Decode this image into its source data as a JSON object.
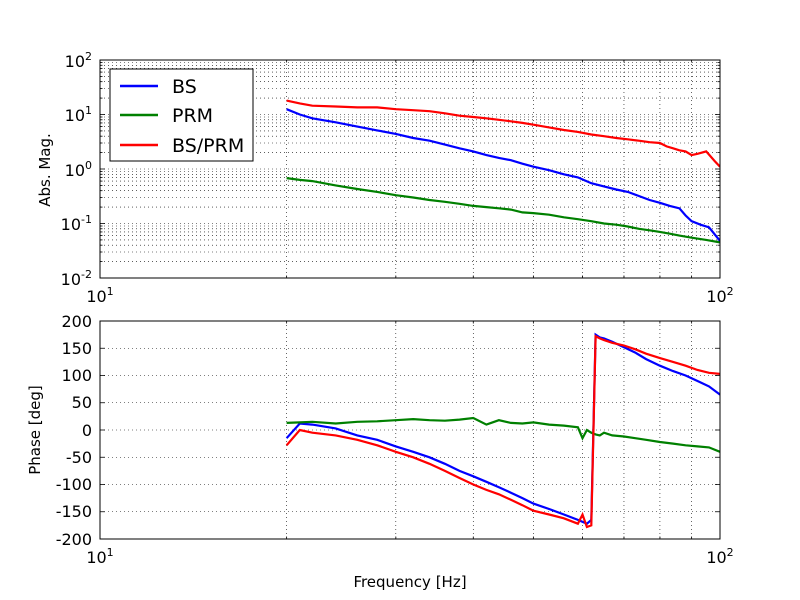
{
  "chart_data": [
    {
      "type": "line",
      "xscale": "log",
      "yscale": "log",
      "xlim": [
        10,
        100
      ],
      "ylim": [
        0.01,
        100
      ],
      "xlabel": "",
      "ylabel": "Abs. Mag.",
      "x_tick_labels": [
        {
          "value": 10,
          "base": "10",
          "exp": "1"
        },
        {
          "value": 100,
          "base": "10",
          "exp": "2"
        }
      ],
      "y_tick_labels": [
        {
          "value": 100,
          "base": "10",
          "exp": "2"
        },
        {
          "value": 10,
          "base": "10",
          "exp": "1"
        },
        {
          "value": 1,
          "base": "10",
          "exp": "0"
        },
        {
          "value": 0.1,
          "base": "10",
          "exp": "-1"
        },
        {
          "value": 0.01,
          "base": "10",
          "exp": "-2"
        }
      ],
      "grid": true,
      "legend": "top-left",
      "series": [
        {
          "name": "BS",
          "color": "#0000ff",
          "x": [
            20,
            21,
            22,
            24,
            26,
            28,
            30,
            32,
            34,
            36,
            38,
            40,
            42,
            44,
            46,
            48,
            50,
            53,
            56,
            59,
            62,
            65,
            68,
            71,
            74,
            77,
            80,
            83,
            86,
            88,
            90,
            93,
            96,
            100
          ],
          "y": [
            12.5,
            10,
            8.5,
            7.2,
            6,
            5.1,
            4.4,
            3.7,
            3.3,
            2.8,
            2.4,
            2.1,
            1.8,
            1.6,
            1.45,
            1.25,
            1.1,
            0.95,
            0.8,
            0.7,
            0.55,
            0.48,
            0.42,
            0.38,
            0.32,
            0.27,
            0.24,
            0.21,
            0.19,
            0.14,
            0.11,
            0.095,
            0.085,
            0.048
          ]
        },
        {
          "name": "PRM",
          "color": "#008000",
          "x": [
            20,
            21,
            22,
            24,
            26,
            28,
            30,
            32,
            34,
            36,
            38,
            40,
            42,
            44,
            46,
            48,
            50,
            53,
            56,
            59,
            62,
            65,
            68,
            71,
            74,
            77,
            80,
            83,
            86,
            90,
            95,
            100
          ],
          "y": [
            0.68,
            0.63,
            0.6,
            0.5,
            0.43,
            0.38,
            0.33,
            0.3,
            0.27,
            0.25,
            0.23,
            0.21,
            0.2,
            0.19,
            0.18,
            0.16,
            0.155,
            0.145,
            0.13,
            0.12,
            0.11,
            0.1,
            0.095,
            0.088,
            0.08,
            0.075,
            0.07,
            0.065,
            0.06,
            0.055,
            0.05,
            0.045
          ]
        },
        {
          "name": "BS/PRM",
          "color": "#ff0000",
          "x": [
            20,
            21,
            22,
            24,
            26,
            28,
            30,
            32,
            34,
            36,
            38,
            40,
            42,
            44,
            46,
            48,
            50,
            53,
            56,
            59,
            62,
            65,
            68,
            71,
            74,
            77,
            80,
            82,
            84,
            86,
            88,
            90,
            92,
            95,
            98,
            100
          ],
          "y": [
            18,
            16,
            14.5,
            14,
            13.5,
            13.5,
            12.5,
            12,
            11.5,
            10.5,
            9.5,
            9,
            8.5,
            8,
            7.5,
            7,
            6.5,
            5.8,
            5.2,
            4.8,
            4.3,
            4,
            3.7,
            3.5,
            3.3,
            3.1,
            3,
            2.6,
            2.4,
            2.2,
            2.1,
            1.8,
            1.9,
            2.1,
            1.4,
            1.1
          ]
        }
      ]
    },
    {
      "type": "line",
      "xscale": "log",
      "xlim": [
        10,
        100
      ],
      "ylim": [
        -200,
        200
      ],
      "xlabel": "Frequency [Hz]",
      "ylabel": "Phase [deg]",
      "x_tick_labels": [
        {
          "value": 10,
          "base": "10",
          "exp": "1"
        },
        {
          "value": 100,
          "base": "10",
          "exp": "2"
        }
      ],
      "y_ticks": [
        200,
        150,
        100,
        50,
        0,
        -50,
        -100,
        -150,
        -200
      ],
      "grid": true,
      "series": [
        {
          "name": "BS",
          "color": "#0000ff",
          "x": [
            20,
            21,
            22,
            24,
            26,
            28,
            30,
            32,
            34,
            36,
            38,
            40,
            42,
            44,
            46,
            48,
            50,
            53,
            56,
            59,
            61,
            62,
            63,
            64,
            65,
            67,
            70,
            73,
            76,
            80,
            84,
            88,
            92,
            96,
            100
          ],
          "y": [
            -15,
            12,
            10,
            3,
            -10,
            -18,
            -30,
            -40,
            -50,
            -62,
            -75,
            -85,
            -95,
            -105,
            -115,
            -125,
            -135,
            -145,
            -155,
            -165,
            -172,
            -165,
            175,
            170,
            168,
            162,
            152,
            142,
            130,
            118,
            108,
            100,
            90,
            80,
            65
          ]
        },
        {
          "name": "PRM",
          "color": "#008000",
          "x": [
            20,
            21,
            22,
            24,
            26,
            28,
            30,
            32,
            34,
            36,
            38,
            40,
            42,
            44,
            46,
            48,
            50,
            53,
            56,
            59,
            60,
            61,
            62,
            63,
            64,
            65,
            67,
            70,
            73,
            76,
            80,
            84,
            88,
            92,
            96,
            100
          ],
          "y": [
            13,
            14,
            15,
            12,
            15,
            16,
            18,
            20,
            18,
            17,
            19,
            22,
            10,
            18,
            13,
            12,
            14,
            10,
            8,
            5,
            -15,
            0,
            -5,
            -8,
            -10,
            -5,
            -10,
            -12,
            -15,
            -18,
            -22,
            -25,
            -28,
            -30,
            -32,
            -40
          ]
        },
        {
          "name": "BS/PRM",
          "color": "#ff0000",
          "x": [
            20,
            21,
            22,
            24,
            26,
            28,
            30,
            32,
            34,
            36,
            38,
            40,
            42,
            44,
            46,
            48,
            50,
            53,
            56,
            59,
            60,
            61,
            62,
            63,
            64,
            65,
            67,
            70,
            73,
            76,
            80,
            84,
            88,
            92,
            96,
            100
          ],
          "y": [
            -28,
            0,
            -5,
            -10,
            -18,
            -28,
            -40,
            -50,
            -62,
            -75,
            -88,
            -100,
            -110,
            -118,
            -128,
            -138,
            -148,
            -155,
            -162,
            -172,
            -155,
            -178,
            -175,
            172,
            168,
            165,
            160,
            155,
            148,
            140,
            132,
            125,
            118,
            110,
            105,
            103
          ]
        }
      ]
    }
  ]
}
